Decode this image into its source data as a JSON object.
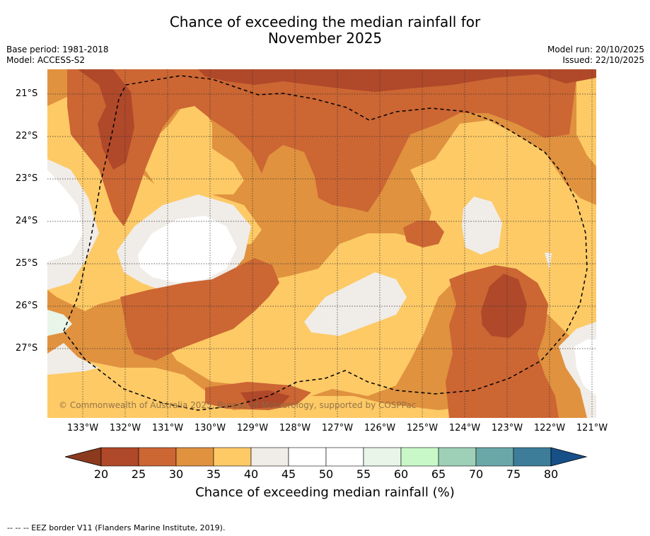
{
  "title": {
    "line1": "Chance of exceeding the median rainfall for",
    "line2": "November 2025"
  },
  "meta": {
    "base_period": "Base period: 1981-2018",
    "model": "Model: ACCESS-S2",
    "model_run": "Model run: 20/10/2025",
    "issued": "Issued: 22/10/2025"
  },
  "copyright": "© Commonwealth of Australia 2025, Bureau of Meteorology, supported by COSPPac",
  "axes": {
    "lon_labels": [
      "133°W",
      "132°W",
      "131°W",
      "130°W",
      "129°W",
      "128°W",
      "127°W",
      "126°W",
      "125°W",
      "124°W",
      "123°W",
      "122°W",
      "121°W"
    ],
    "lat_labels": [
      "21°S",
      "22°S",
      "23°S",
      "24°S",
      "25°S",
      "26°S",
      "27°S"
    ]
  },
  "colorbar": {
    "title": "Chance of exceeding median rainfall (%)",
    "ticks": [
      "20",
      "25",
      "30",
      "35",
      "40",
      "45",
      "50",
      "55",
      "60",
      "65",
      "70",
      "75",
      "80"
    ],
    "colors": [
      "#8b3a1e",
      "#b0482a",
      "#cc6633",
      "#e0923f",
      "#fdca66",
      "#f0ece8",
      "#ffffff",
      "#ffffff",
      "#e8f5e8",
      "#c8f8c8",
      "#9ed0b8",
      "#6aa8a8",
      "#3d7d9a",
      "#174f88"
    ]
  },
  "palette": {
    "c20": "#b0482a",
    "c25": "#cc6633",
    "c30": "#e0923f",
    "c35": "#fdca66",
    "c40": "#f0ece8",
    "c45": "#ffffff",
    "c55": "#e8f5e8"
  },
  "footnote": "--  --  -- EEZ border V11 (Flanders Marine Institute, 2019)."
}
